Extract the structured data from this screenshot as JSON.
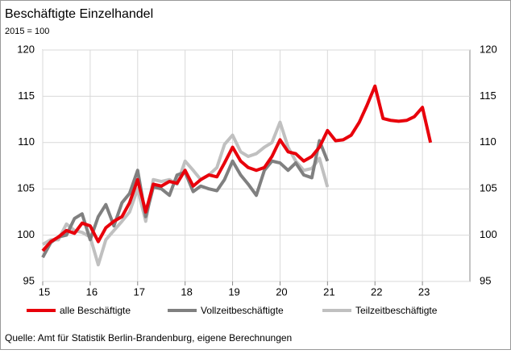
{
  "chart_data": {
    "type": "line",
    "title": "Beschäftigte Einzelhandel",
    "subtitle": "2015 = 100",
    "source": "Quelle: Amt für Statistik Berlin-Brandenburg, eigene Berechnungen",
    "x": [
      15,
      15.17,
      15.33,
      15.5,
      15.67,
      15.83,
      16,
      16.17,
      16.33,
      16.5,
      16.67,
      16.83,
      17,
      17.17,
      17.33,
      17.5,
      17.67,
      17.83,
      18,
      18.17,
      18.33,
      18.5,
      18.67,
      18.83,
      19,
      19.17,
      19.33,
      19.5,
      19.67,
      19.83,
      20,
      20.17,
      20.33,
      20.5,
      20.67,
      20.83,
      21,
      21.17,
      21.33,
      21.5,
      21.67,
      21.83,
      22,
      22.17,
      22.33,
      22.5,
      22.67,
      22.83,
      23,
      23.17
    ],
    "series": [
      {
        "name": "alle Beschäftigte",
        "color": "#e8000b",
        "values": [
          98.3,
          99.3,
          99.8,
          100.5,
          100.2,
          101.3,
          101.0,
          99.3,
          100.8,
          101.5,
          102.0,
          103.5,
          106.0,
          102.5,
          105.5,
          105.3,
          105.8,
          105.6,
          107.0,
          105.3,
          106.0,
          106.5,
          106.3,
          107.8,
          109.5,
          108.0,
          107.3,
          107.0,
          107.3,
          108.5,
          110.3,
          109.0,
          108.8,
          108.0,
          108.5,
          109.5,
          111.3,
          110.2,
          110.3,
          110.8,
          112.2,
          114.0,
          116.1,
          112.6,
          112.4,
          112.3,
          112.4,
          112.8,
          113.8,
          110.0
        ]
      },
      {
        "name": "Vollzeitbeschäftigte",
        "color": "#808080",
        "values": [
          97.6,
          99.2,
          99.8,
          100.0,
          101.8,
          102.3,
          99.5,
          102.0,
          103.3,
          101.0,
          103.5,
          104.5,
          107.0,
          102.0,
          105.2,
          105.0,
          104.3,
          106.5,
          106.8,
          104.7,
          105.3,
          105.0,
          104.8,
          106.0,
          108.0,
          106.5,
          105.5,
          104.3,
          107.0,
          108.0,
          107.8,
          107.0,
          107.8,
          106.5,
          106.2,
          110.2,
          108.0,
          null,
          null,
          null,
          null,
          null,
          null,
          null,
          null,
          null,
          null,
          null,
          null,
          null
        ]
      },
      {
        "name": "Teilzeitbeschäftigte",
        "color": "#c0c0c0",
        "values": [
          99.0,
          99.5,
          99.5,
          101.2,
          100.5,
          100.3,
          99.8,
          96.8,
          99.5,
          100.5,
          101.5,
          102.5,
          105.0,
          101.5,
          106.0,
          105.8,
          106.0,
          105.5,
          108.0,
          107.0,
          106.0,
          106.5,
          107.3,
          109.8,
          110.8,
          109.0,
          108.5,
          108.8,
          109.5,
          110.0,
          112.2,
          109.5,
          108.0,
          107.0,
          107.2,
          108.3,
          105.2,
          null,
          null,
          null,
          null,
          null,
          null,
          null,
          null,
          null,
          null,
          null,
          null,
          null
        ]
      }
    ],
    "xlim": [
      15,
      24
    ],
    "xticks": [
      15,
      16,
      17,
      18,
      19,
      20,
      21,
      22,
      23
    ],
    "ylim": [
      95,
      120
    ],
    "yticks": [
      95,
      100,
      105,
      110,
      115,
      120
    ],
    "grid": true
  }
}
